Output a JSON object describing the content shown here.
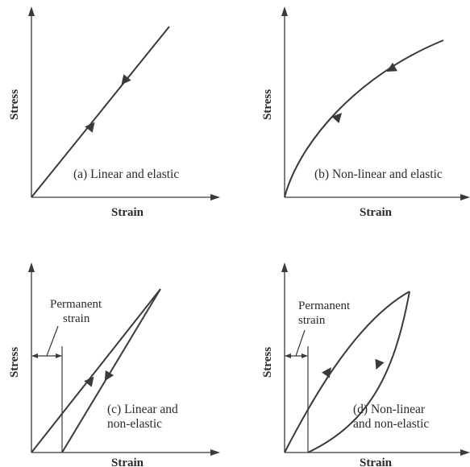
{
  "panels": [
    {
      "id": "a",
      "y_axis_label": "Stress",
      "x_axis_label": "Strain",
      "caption": [
        "(a) Linear and elastic"
      ]
    },
    {
      "id": "b",
      "y_axis_label": "Stress",
      "x_axis_label": "Strain",
      "caption": [
        "(b) Non-linear and elastic"
      ]
    },
    {
      "id": "c",
      "y_axis_label": "Stress",
      "x_axis_label": "Strain",
      "caption": [
        "(c) Linear and",
        "non-elastic"
      ],
      "annotation": [
        "Permanent",
        "strain"
      ]
    },
    {
      "id": "d",
      "y_axis_label": "Stress",
      "x_axis_label": "Strain",
      "caption": [
        "(d) Non-linear",
        "and non-elastic"
      ],
      "annotation": [
        "Permanent",
        "strain"
      ]
    }
  ],
  "colors": {
    "ink": "#3a3a3a",
    "background": "#ffffff"
  }
}
